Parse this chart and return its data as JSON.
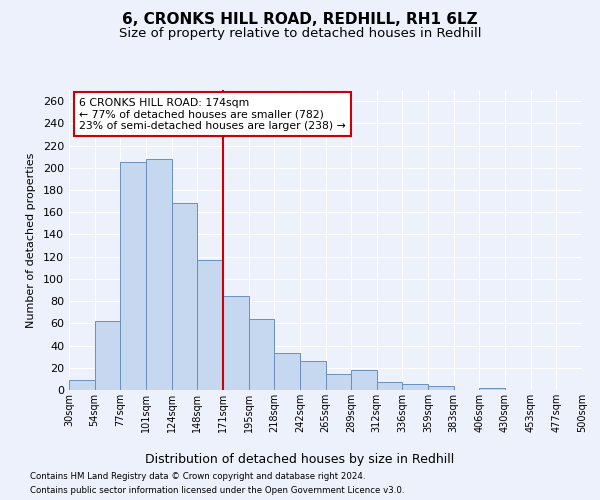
{
  "title": "6, CRONKS HILL ROAD, REDHILL, RH1 6LZ",
  "subtitle": "Size of property relative to detached houses in Redhill",
  "xlabel": "Distribution of detached houses by size in Redhill",
  "ylabel": "Number of detached properties",
  "bar_values": [
    9,
    62,
    205,
    208,
    168,
    117,
    85,
    64,
    33,
    26,
    14,
    18,
    7,
    5,
    4,
    0,
    2,
    0,
    0,
    0
  ],
  "bar_color": "#c5d8f0",
  "bar_edge_color": "#6a8fc0",
  "vline_color": "#cc0000",
  "vline_index": 6,
  "annotation_text": "6 CRONKS HILL ROAD: 174sqm\n← 77% of detached houses are smaller (782)\n23% of semi-detached houses are larger (238) →",
  "annotation_box_color": "#ffffff",
  "annotation_box_edge": "#cc0000",
  "ylim_max": 270,
  "yticks": [
    0,
    20,
    40,
    60,
    80,
    100,
    120,
    140,
    160,
    180,
    200,
    220,
    240,
    260
  ],
  "xlabels": [
    "30sqm",
    "54sqm",
    "77sqm",
    "101sqm",
    "124sqm",
    "148sqm",
    "171sqm",
    "195sqm",
    "218sqm",
    "242sqm",
    "265sqm",
    "289sqm",
    "312sqm",
    "336sqm",
    "359sqm",
    "383sqm",
    "406sqm",
    "430sqm",
    "453sqm",
    "477sqm",
    "500sqm"
  ],
  "footnote1": "Contains HM Land Registry data © Crown copyright and database right 2024.",
  "footnote2": "Contains public sector information licensed under the Open Government Licence v3.0.",
  "bg_color": "#edf1fb",
  "title_fontsize": 11,
  "subtitle_fontsize": 9.5,
  "xlabel_fontsize": 9,
  "ylabel_fontsize": 8,
  "ytick_fontsize": 8,
  "xtick_fontsize": 7
}
